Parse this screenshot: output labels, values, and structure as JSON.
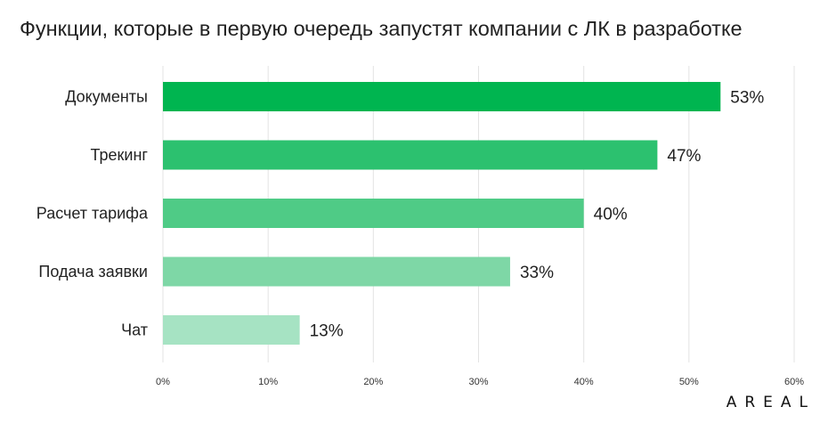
{
  "chart_data": {
    "type": "bar",
    "orientation": "horizontal",
    "title": "Функции, которые в первую очередь запустят компании с ЛК в разработке",
    "categories": [
      "Документы",
      "Трекинг",
      "Расчет тарифа",
      "Подача заявки",
      "Чат"
    ],
    "values": [
      53,
      47,
      40,
      33,
      13
    ],
    "value_labels": [
      "53%",
      "47%",
      "40%",
      "33%",
      "13%"
    ],
    "bar_colors": [
      "#00b550",
      "#2cc16f",
      "#4fcb86",
      "#7ed7a6",
      "#a6e3c3"
    ],
    "xlim": [
      0,
      60
    ],
    "xticks": [
      0,
      10,
      20,
      30,
      40,
      50,
      60
    ],
    "xtick_labels": [
      "0%",
      "10%",
      "20%",
      "30%",
      "40%",
      "50%",
      "60%"
    ],
    "xlabel": "",
    "ylabel": "",
    "grid": "vertical",
    "legend": "none"
  },
  "brand": {
    "name": "AREAL"
  }
}
